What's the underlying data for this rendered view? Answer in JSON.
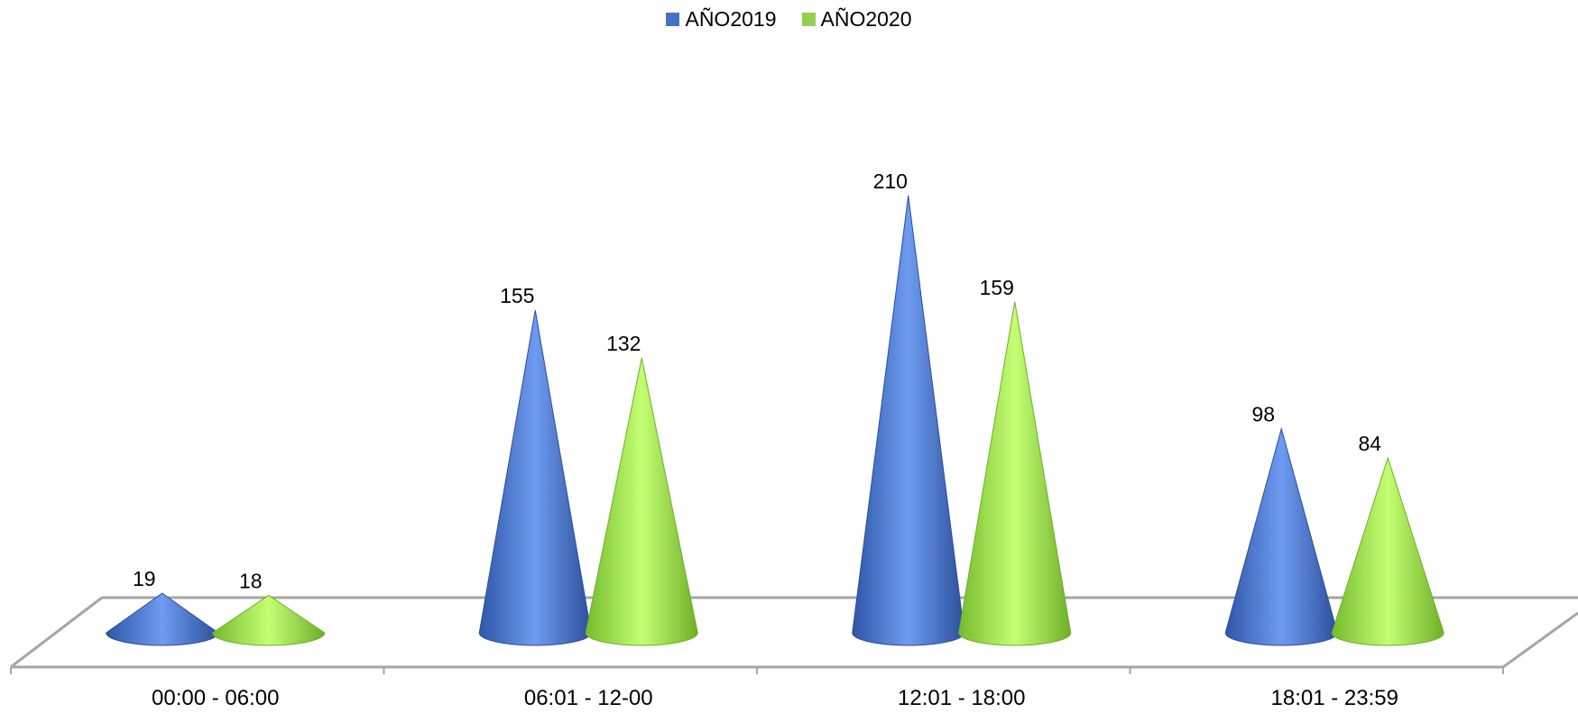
{
  "chart_data": {
    "type": "bar",
    "shape": "cone",
    "categories": [
      "00:00 - 06:00",
      "06:01 - 12-00",
      "12:01 - 18:00",
      "18:01 - 23:59"
    ],
    "series": [
      {
        "name": "AÑO2019",
        "values": [
          19,
          155,
          210,
          98
        ],
        "color": "#4472C4"
      },
      {
        "name": "AÑO2020",
        "values": [
          18,
          132,
          159,
          84
        ],
        "color": "#92D050"
      }
    ],
    "ylim": [
      0,
      210
    ],
    "legend": "top-center",
    "data_labels": true
  }
}
